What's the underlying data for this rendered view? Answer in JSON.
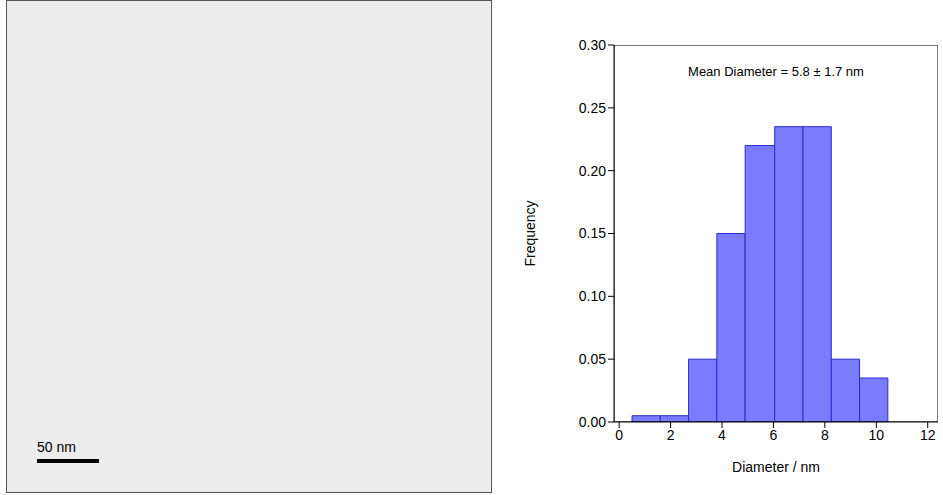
{
  "image": {
    "scale_bar": "50 nm"
  },
  "chart_data": {
    "type": "histogram",
    "annotation": "Mean Diameter = 5.8 ± 1.7 nm",
    "x_label": "Diameter / nm",
    "y_label": "Frequency",
    "bins": [
      0.5,
      1.6,
      2.7,
      3.8,
      4.9,
      6.05,
      7.15,
      8.25,
      9.35,
      10.45
    ],
    "values": [
      0.005,
      0.005,
      0.05,
      0.15,
      0.22,
      0.235,
      0.235,
      0.05,
      0.035
    ],
    "color": "#7b7bff",
    "xlim": [
      -0.2,
      12.4
    ],
    "xticks": [
      0,
      2,
      4,
      6,
      8,
      10,
      12
    ],
    "ylim": [
      0,
      0.3
    ],
    "yticks": [
      {
        "value": 0,
        "label": "0.00"
      },
      {
        "value": 0.05,
        "label": "0.05"
      },
      {
        "value": 0.1,
        "label": "0.10"
      },
      {
        "value": 0.15,
        "label": "0.15"
      },
      {
        "value": 0.2,
        "label": "0.20"
      },
      {
        "value": 0.25,
        "label": "0.25"
      },
      {
        "value": 0.3,
        "label": "0.30"
      }
    ],
    "grid": false
  }
}
